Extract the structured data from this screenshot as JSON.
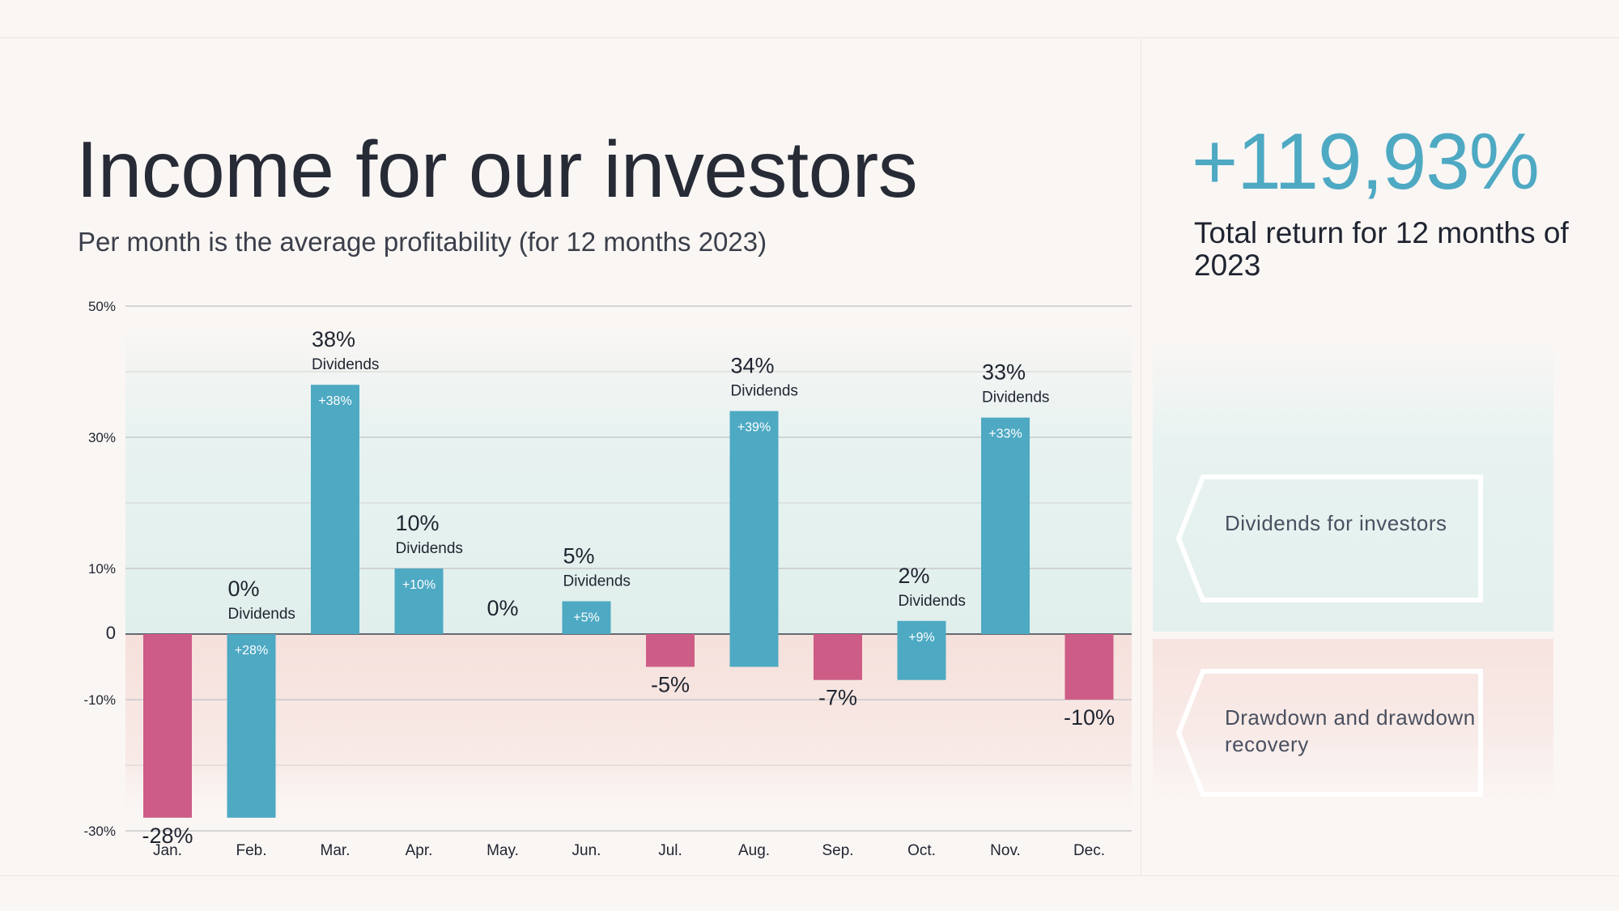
{
  "header": {
    "title": "Income for our investors",
    "subtitle": "Per month is the average profitability (for 12 months 2023)"
  },
  "summary": {
    "total_return": "+119,93%",
    "total_label": "Total return for 12 months of 2023"
  },
  "legend": {
    "positive_label": "Dividends for investors",
    "negative_label": "Drawdown and drawdown recovery"
  },
  "colors": {
    "accent": "#4ea9c3",
    "negative": "#cd5c86",
    "positive_zone": "#e3f0ee",
    "negative_zone": "#f7e3df",
    "grid": "#c9c9c9"
  },
  "chart_data": {
    "type": "bar",
    "title": "Income for our investors",
    "ylim": [
      -30,
      50
    ],
    "ytick_labels": [
      {
        "value": 50,
        "label": "50%"
      },
      {
        "value": 30,
        "label": "30%"
      },
      {
        "value": 10,
        "label": "10%"
      },
      {
        "value": 0,
        "label": "0"
      },
      {
        "value": -10,
        "label": "-10%"
      },
      {
        "value": -30,
        "label": "-30%"
      }
    ],
    "extra_gridlines": [
      40,
      20,
      -20
    ],
    "categories": [
      "Jan.",
      "Feb.",
      "Mar.",
      "Apr.",
      "May.",
      "Jun.",
      "Jul.",
      "Aug.",
      "Sep.",
      "Oct.",
      "Nov.",
      "Dec."
    ],
    "series": [
      {
        "name": "Drawdown",
        "color": "#cd5c86",
        "values": [
          -28,
          0,
          0,
          0,
          0,
          0,
          -5,
          0,
          -7,
          0,
          0,
          -10
        ]
      },
      {
        "name": "Dividends",
        "color": "#4ea9c3",
        "bars": [
          {
            "month": "Feb.",
            "from": -28,
            "to": 0,
            "label": "+28%"
          },
          {
            "month": "Mar.",
            "from": 0,
            "to": 38,
            "label": "+38%"
          },
          {
            "month": "Apr.",
            "from": 0,
            "to": 10,
            "label": "+10%"
          },
          {
            "month": "Jun.",
            "from": 0,
            "to": 5,
            "label": "+5%"
          },
          {
            "month": "Aug.",
            "from": -5,
            "to": 34,
            "label": "+39%"
          },
          {
            "month": "Oct.",
            "from": -7,
            "to": 2,
            "label": "+9%"
          },
          {
            "month": "Nov.",
            "from": 0,
            "to": 33,
            "label": "+33%"
          }
        ]
      }
    ],
    "month_results": [
      {
        "month": "Jan.",
        "value": -28,
        "label": "-28%",
        "sub": ""
      },
      {
        "month": "Feb.",
        "value": 0,
        "label": "0%",
        "sub": "Dividends"
      },
      {
        "month": "Mar.",
        "value": 38,
        "label": "38%",
        "sub": "Dividends"
      },
      {
        "month": "Apr.",
        "value": 10,
        "label": "10%",
        "sub": "Dividends"
      },
      {
        "month": "May.",
        "value": 0,
        "label": "0%",
        "sub": ""
      },
      {
        "month": "Jun.",
        "value": 5,
        "label": "5%",
        "sub": "Dividends"
      },
      {
        "month": "Jul.",
        "value": -5,
        "label": "-5%",
        "sub": ""
      },
      {
        "month": "Aug.",
        "value": 34,
        "label": "34%",
        "sub": "Dividends"
      },
      {
        "month": "Sep.",
        "value": -7,
        "label": "-7%",
        "sub": ""
      },
      {
        "month": "Oct.",
        "value": 2,
        "label": "2%",
        "sub": "Dividends"
      },
      {
        "month": "Nov.",
        "value": 33,
        "label": "33%",
        "sub": "Dividends"
      },
      {
        "month": "Dec.",
        "value": -10,
        "label": "-10%",
        "sub": ""
      }
    ]
  }
}
